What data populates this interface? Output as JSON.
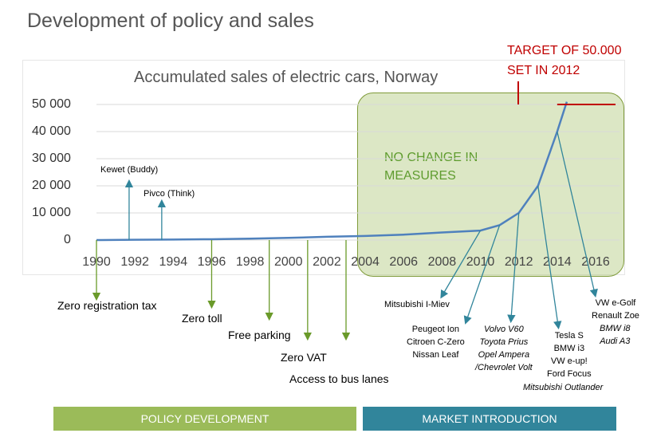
{
  "slide": {
    "title": "Development of policy and sales",
    "nochange_label": "NO CHANGE IN MEASURES",
    "target_label": "TARGET OF 50.000\nSET IN 2012"
  },
  "policies": [
    {
      "label": "Zero registration tax",
      "year": 1990
    },
    {
      "label": "Zero toll",
      "year": 1996
    },
    {
      "label": "Free parking",
      "year": 1999
    },
    {
      "label": "Zero VAT",
      "year": 2001
    },
    {
      "label": "Access to bus lanes",
      "year": 2003
    }
  ],
  "models": {
    "kewet": "Kewet (Buddy)",
    "pivco": "Pivco (Think)",
    "mitsubishi": "Mitsubishi I-Miev",
    "peugeot": "Peugeot Ion\nCitroen C-Zero\nNissan Leaf",
    "volvo": "Volvo V60\nToyota Prius\nOpel Ampera\n/Chevrolet Volt",
    "tesla": "Tesla S\nBMW i3\nVW e-up!\nFord Focus",
    "tesla_italic": "Mitsubishi Outlander",
    "vw": "VW e-Golf\nRenault Zoe",
    "vw_italic": "BMW i8\nAudi A3"
  },
  "bars": {
    "policy": "POLICY DEVELOPMENT",
    "market": "MARKET INTRODUCTION"
  },
  "chart_data": {
    "type": "line",
    "title": "Accumulated sales of electric cars, Norway",
    "x_ticks": [
      "1990",
      "1992",
      "1994",
      "1996",
      "1998",
      "2000",
      "2002",
      "2004",
      "2006",
      "2008",
      "2010",
      "2012",
      "2014",
      "2016"
    ],
    "y_ticks": [
      "50 000",
      "40 000",
      "30 000",
      "20 000",
      "10 000",
      "0"
    ],
    "xlim": [
      1990,
      2016
    ],
    "ylim": [
      0,
      50000
    ],
    "grid": true,
    "series": [
      {
        "x": [
          1990,
          1992,
          1994,
          1996,
          1998,
          2000,
          2002,
          2004,
          2006,
          2008,
          2010,
          2011,
          2012,
          2013,
          2014,
          2014.5
        ],
        "values": [
          0,
          100,
          200,
          300,
          500,
          800,
          1200,
          1500,
          2000,
          2800,
          3500,
          5500,
          10000,
          20000,
          40000,
          51000
        ]
      }
    ],
    "target": 50000,
    "colors": {
      "line": "#4f81bd",
      "target": "#c00000",
      "policy_arrow": "#6a9a2a",
      "model_arrow": "#31859b"
    }
  }
}
